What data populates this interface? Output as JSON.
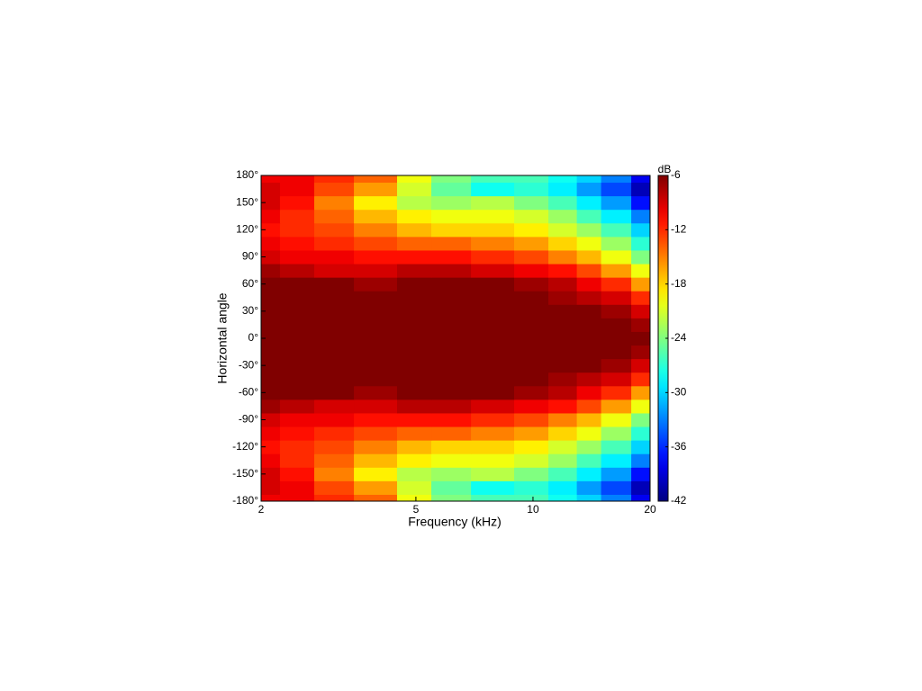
{
  "chart_data": {
    "type": "contour",
    "xlabel": "Frequency (kHz)",
    "ylabel": "Horizontal angle",
    "colorbar_label": "dB",
    "xscale": "log",
    "xlim": [
      2,
      20
    ],
    "xticks": [
      2,
      5,
      10,
      20
    ],
    "ylim": [
      -180,
      180
    ],
    "yticks": [
      {
        "value": -180,
        "label": "-180°"
      },
      {
        "value": -150,
        "label": "-150°"
      },
      {
        "value": -120,
        "label": "-120°"
      },
      {
        "value": -90,
        "label": "-90°"
      },
      {
        "value": -60,
        "label": "-60°"
      },
      {
        "value": -30,
        "label": "-30°"
      },
      {
        "value": 0,
        "label": "0°"
      },
      {
        "value": 30,
        "label": "30°"
      },
      {
        "value": 60,
        "label": "60°"
      },
      {
        "value": 90,
        "label": "90°"
      },
      {
        "value": 120,
        "label": "120°"
      },
      {
        "value": 150,
        "label": "150°"
      },
      {
        "value": 180,
        "label": "180°"
      }
    ],
    "clim": [
      -42,
      -6
    ],
    "cticks": [
      -6,
      -12,
      -18,
      -24,
      -30,
      -36,
      -42
    ],
    "colormap": "jet",
    "x": [
      2,
      2.5,
      3,
      4,
      5,
      6,
      8,
      10,
      12,
      14,
      16,
      20
    ],
    "y": [
      -180,
      -165,
      -150,
      -135,
      -120,
      -105,
      -90,
      -75,
      -60,
      -45,
      -30,
      -15,
      0,
      15,
      30,
      45,
      60,
      75,
      90,
      105,
      120,
      135,
      150,
      165,
      180
    ],
    "z": [
      [
        -10,
        -10,
        -12,
        -14,
        -20,
        -24,
        -26,
        -26,
        -28,
        -30,
        -33,
        -38
      ],
      [
        -9,
        -10,
        -13,
        -16,
        -21,
        -25,
        -28,
        -27,
        -29,
        -32,
        -35,
        -40
      ],
      [
        -9,
        -11,
        -15,
        -19,
        -22,
        -23,
        -22,
        -24,
        -26,
        -29,
        -32,
        -37
      ],
      [
        -10,
        -12,
        -14,
        -17,
        -19,
        -20,
        -20,
        -21,
        -23,
        -26,
        -29,
        -33
      ],
      [
        -11,
        -12,
        -13,
        -15,
        -17,
        -18,
        -18,
        -19,
        -21,
        -23,
        -26,
        -30
      ],
      [
        -10,
        -11,
        -12,
        -13,
        -14,
        -14,
        -15,
        -16,
        -18,
        -20,
        -23,
        -27
      ],
      [
        -9,
        -10,
        -10,
        -11,
        -11,
        -11,
        -12,
        -13,
        -15,
        -17,
        -20,
        -24
      ],
      [
        -7,
        -8,
        -9,
        -9,
        -8,
        -8,
        -9,
        -10,
        -11,
        -13,
        -16,
        -20
      ],
      [
        -6,
        -6,
        -6,
        -7,
        -6,
        -6,
        -6,
        -7,
        -8,
        -10,
        -12,
        -16
      ],
      [
        -6,
        -6,
        -6,
        -6,
        -6,
        -6,
        -6,
        -6,
        -7,
        -8,
        -9,
        -12
      ],
      [
        -6,
        -6,
        -6,
        -6,
        -6,
        -6,
        -6,
        -6,
        -6,
        -6,
        -7,
        -9
      ],
      [
        -6,
        -6,
        -6,
        -6,
        -6,
        -6,
        -6,
        -6,
        -6,
        -6,
        -6,
        -7
      ],
      [
        -6,
        -6,
        -6,
        -6,
        -6,
        -6,
        -6,
        -6,
        -6,
        -6,
        -6,
        -6
      ],
      [
        -6,
        -6,
        -6,
        -6,
        -6,
        -6,
        -6,
        -6,
        -6,
        -6,
        -6,
        -7
      ],
      [
        -6,
        -6,
        -6,
        -6,
        -6,
        -6,
        -6,
        -6,
        -6,
        -6,
        -7,
        -9
      ],
      [
        -6,
        -6,
        -6,
        -6,
        -6,
        -6,
        -6,
        -6,
        -7,
        -8,
        -9,
        -12
      ],
      [
        -6,
        -6,
        -6,
        -7,
        -6,
        -6,
        -6,
        -7,
        -8,
        -10,
        -12,
        -16
      ],
      [
        -7,
        -8,
        -9,
        -9,
        -8,
        -8,
        -9,
        -10,
        -11,
        -13,
        -16,
        -20
      ],
      [
        -9,
        -10,
        -10,
        -11,
        -11,
        -11,
        -12,
        -13,
        -15,
        -17,
        -20,
        -24
      ],
      [
        -10,
        -11,
        -12,
        -13,
        -14,
        -14,
        -15,
        -16,
        -18,
        -20,
        -23,
        -27
      ],
      [
        -11,
        -12,
        -13,
        -15,
        -17,
        -18,
        -18,
        -19,
        -21,
        -23,
        -26,
        -30
      ],
      [
        -10,
        -12,
        -14,
        -17,
        -19,
        -20,
        -20,
        -21,
        -23,
        -26,
        -29,
        -33
      ],
      [
        -9,
        -11,
        -15,
        -19,
        -22,
        -23,
        -22,
        -24,
        -26,
        -29,
        -32,
        -37
      ],
      [
        -9,
        -10,
        -13,
        -16,
        -21,
        -25,
        -28,
        -27,
        -29,
        -32,
        -35,
        -40
      ],
      [
        -10,
        -10,
        -12,
        -14,
        -20,
        -24,
        -26,
        -26,
        -28,
        -30,
        -33,
        -38
      ]
    ]
  }
}
